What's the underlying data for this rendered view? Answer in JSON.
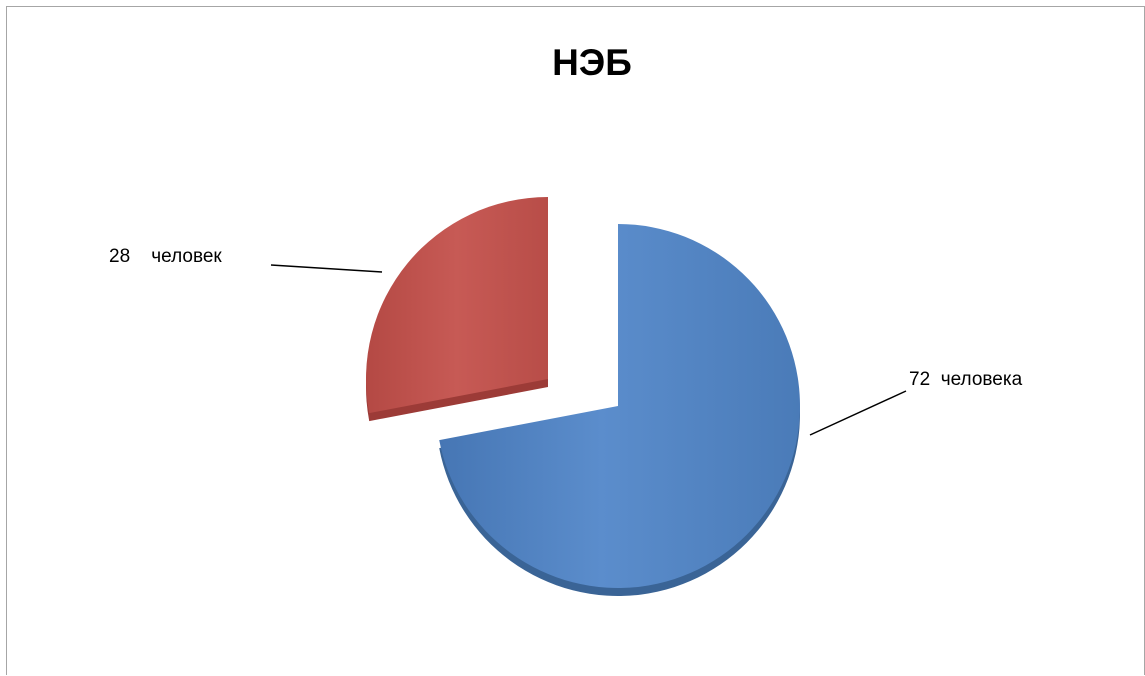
{
  "chart_data": {
    "type": "pie",
    "title": "НЭБ",
    "series": [
      {
        "values": [
          72,
          28
        ],
        "colors": [
          "#4f81bd",
          "#c0504d"
        ],
        "labels": [
          "72  человека",
          "28    человек"
        ]
      }
    ],
    "style": "3d-exploded",
    "legend": "none"
  }
}
